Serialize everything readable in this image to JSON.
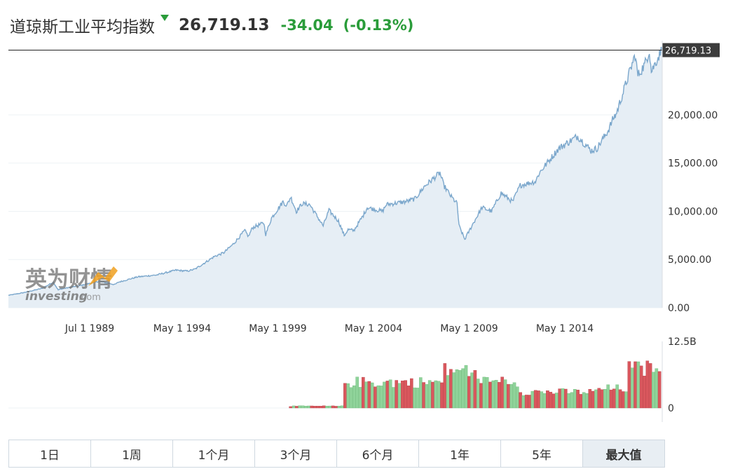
{
  "header": {
    "name": "道琼斯工业平均指数",
    "price": "26,719.13",
    "change": "-34.04",
    "change_pct": "(-0.13%)"
  },
  "colors": {
    "line": "#7ba7cc",
    "area": "#e6eef5",
    "up": "#8fd39a",
    "down": "#d9575d",
    "change": "#2a9c3a"
  },
  "watermark": {
    "cn": "英为财情",
    "en": "investing",
    "suffix": ".com"
  },
  "range_tabs": [
    {
      "label": "1日",
      "active": false
    },
    {
      "label": "1周",
      "active": false
    },
    {
      "label": "1个月",
      "active": false
    },
    {
      "label": "3个月",
      "active": false
    },
    {
      "label": "6个月",
      "active": false
    },
    {
      "label": "1年",
      "active": false
    },
    {
      "label": "5年",
      "active": false
    },
    {
      "label": "最大值",
      "active": true
    }
  ],
  "chart_data": [
    {
      "type": "area",
      "x_start": "1985-03",
      "x_end": "2018-12",
      "x_tick_labels": [
        {
          "label": "Jul 1 1989",
          "date": 1989.5
        },
        {
          "label": "May 1 1994",
          "date": 1994.33
        },
        {
          "label": "May 1 1999",
          "date": 1999.33
        },
        {
          "label": "May 1 2004",
          "date": 2004.33
        },
        {
          "label": "May 1 2009",
          "date": 2009.33
        },
        {
          "label": "May 1 2014",
          "date": 2014.33
        }
      ],
      "y_tick_labels": [
        {
          "label": "0.00",
          "value": 0
        },
        {
          "label": "5,000.00",
          "value": 5000
        },
        {
          "label": "10,000.00",
          "value": 10000
        },
        {
          "label": "15,000.00",
          "value": 15000
        },
        {
          "label": "20,000.00",
          "value": 20000
        }
      ],
      "ylim": [
        0,
        27700
      ],
      "last_value": 26719.13,
      "last_value_label": "26,719.13",
      "points": [
        [
          1985.25,
          1290
        ],
        [
          1986.0,
          1550
        ],
        [
          1987.0,
          2000
        ],
        [
          1987.6,
          2650
        ],
        [
          1987.85,
          1850
        ],
        [
          1988.0,
          1950
        ],
        [
          1989.0,
          2300
        ],
        [
          1990.0,
          2750
        ],
        [
          1990.8,
          2400
        ],
        [
          1991.0,
          2650
        ],
        [
          1992.0,
          3200
        ],
        [
          1993.0,
          3400
        ],
        [
          1994.0,
          3900
        ],
        [
          1994.6,
          3800
        ],
        [
          1995.0,
          4000
        ],
        [
          1996.0,
          5300
        ],
        [
          1996.5,
          5700
        ],
        [
          1997.0,
          6600
        ],
        [
          1997.6,
          8000
        ],
        [
          1997.8,
          7400
        ],
        [
          1998.0,
          8300
        ],
        [
          1998.6,
          8800
        ],
        [
          1998.7,
          7600
        ],
        [
          1999.0,
          9300
        ],
        [
          1999.6,
          11000
        ],
        [
          1999.8,
          10600
        ],
        [
          2000.0,
          11500
        ],
        [
          2000.3,
          10000
        ],
        [
          2000.6,
          10800
        ],
        [
          2001.0,
          10700
        ],
        [
          2001.7,
          8500
        ],
        [
          2002.0,
          10100
        ],
        [
          2002.5,
          9000
        ],
        [
          2002.8,
          7500
        ],
        [
          2003.0,
          8100
        ],
        [
          2003.3,
          8000
        ],
        [
          2003.8,
          9600
        ],
        [
          2004.0,
          10400
        ],
        [
          2004.8,
          10000
        ],
        [
          2005.0,
          10700
        ],
        [
          2006.0,
          11000
        ],
        [
          2006.5,
          11300
        ],
        [
          2007.0,
          12600
        ],
        [
          2007.8,
          14000
        ],
        [
          2008.0,
          12700
        ],
        [
          2008.4,
          11500
        ],
        [
          2008.7,
          10800
        ],
        [
          2008.8,
          8500
        ],
        [
          2009.1,
          7100
        ],
        [
          2009.5,
          8600
        ],
        [
          2010.0,
          10400
        ],
        [
          2010.5,
          10000
        ],
        [
          2011.0,
          11900
        ],
        [
          2011.6,
          11000
        ],
        [
          2012.0,
          12700
        ],
        [
          2012.8,
          13100
        ],
        [
          2013.0,
          14000
        ],
        [
          2014.0,
          16500
        ],
        [
          2015.0,
          17800
        ],
        [
          2015.7,
          16300
        ],
        [
          2016.0,
          16500
        ],
        [
          2016.6,
          18400
        ],
        [
          2016.9,
          19800
        ],
        [
          2017.0,
          20000
        ],
        [
          2018.0,
          26200
        ],
        [
          2018.15,
          24100
        ],
        [
          2018.5,
          25200
        ],
        [
          2018.75,
          26700
        ],
        [
          2018.85,
          24500
        ],
        [
          2019.4,
          26800
        ]
      ]
    },
    {
      "type": "bar",
      "y_tick_labels": [
        {
          "label": "12.5B",
          "value": 12.5
        },
        {
          "label": "0",
          "value": 0
        }
      ],
      "ylim": [
        0,
        12.5
      ],
      "unit": "B",
      "segments": [
        {
          "start": 2000.0,
          "end": 2002.8,
          "level": 0.35
        },
        {
          "start": 2002.8,
          "end": 2008.0,
          "level": 4.8
        },
        {
          "start": 2008.0,
          "end": 2009.8,
          "level": 7.0
        },
        {
          "start": 2009.8,
          "end": 2012.0,
          "level": 5.0
        },
        {
          "start": 2012.0,
          "end": 2016.0,
          "level": 3.0
        },
        {
          "start": 2016.0,
          "end": 2017.6,
          "level": 3.6
        },
        {
          "start": 2017.6,
          "end": 2019.6,
          "level": 7.3
        }
      ],
      "peaks": [
        [
          2008.8,
          8.3
        ],
        [
          2009.2,
          9.0
        ],
        [
          2010.2,
          5.9
        ],
        [
          2011.6,
          5.8
        ],
        [
          2018.1,
          9.7
        ],
        [
          2018.8,
          8.8
        ]
      ]
    }
  ]
}
